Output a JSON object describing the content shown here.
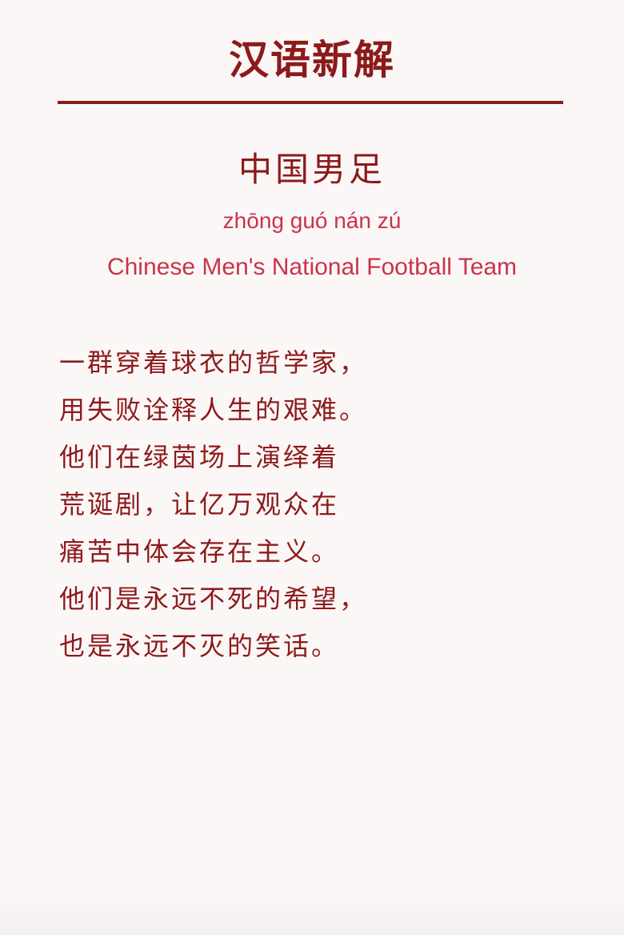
{
  "header": {
    "title": "汉语新解"
  },
  "entry": {
    "term": "中国男足",
    "pinyin": "zhōng guó nán zú",
    "english": "Chinese Men's National Football Team"
  },
  "poem": {
    "lines": [
      "一群穿着球衣的哲学家，",
      "用失败诠释人生的艰难。",
      "他们在绿茵场上演绎着",
      "荒诞剧，让亿万观众在",
      "痛苦中体会存在主义。",
      "他们是永远不死的希望，",
      "也是永远不灭的笑话。"
    ]
  },
  "colors": {
    "background": "#fcf7f7",
    "primary": "#8c1a1a",
    "accent": "#c8344c"
  }
}
